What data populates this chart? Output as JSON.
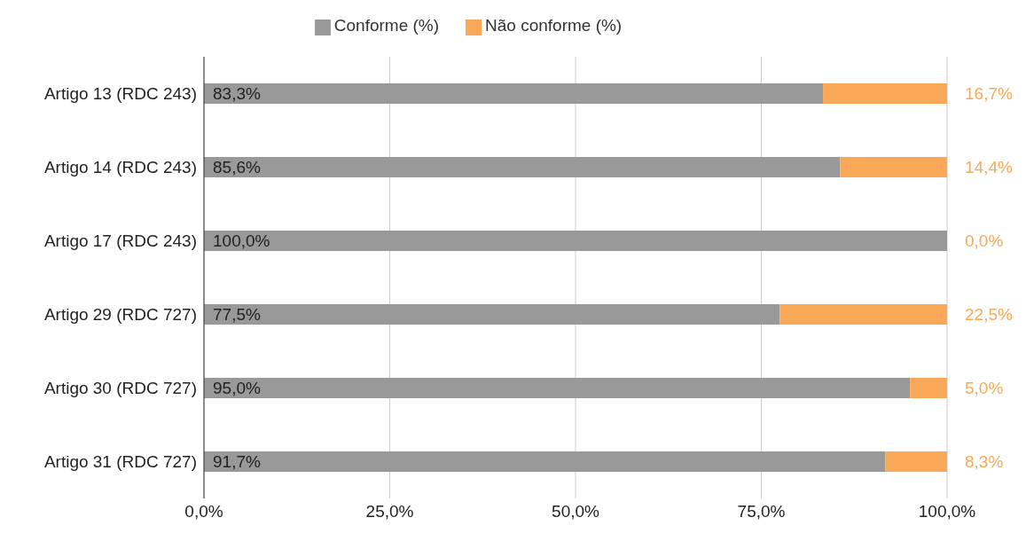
{
  "chart_data": {
    "type": "bar",
    "orientation": "horizontal",
    "stacked": true,
    "categories": [
      "Artigo 13 (RDC 243)",
      "Artigo 14 (RDC 243)",
      "Artigo 17 (RDC 243)",
      "Artigo 29 (RDC 727)",
      "Artigo 30 (RDC 727)",
      "Artigo 31 (RDC 727)"
    ],
    "series": [
      {
        "name": "Conforme (%)",
        "color": "#999999",
        "values": [
          83.3,
          85.6,
          100.0,
          77.5,
          95.0,
          91.7
        ],
        "value_labels": [
          "83,3%",
          "85,6%",
          "100,0%",
          "77,5%",
          "95,0%",
          "91,7%"
        ]
      },
      {
        "name": "Não conforme (%)",
        "color": "#f9a857",
        "values": [
          16.7,
          14.4,
          0.0,
          22.5,
          5.0,
          8.3
        ],
        "value_labels": [
          "16,7%",
          "14,4%",
          "0,0%",
          "22,5%",
          "5,0%",
          "8,3%"
        ]
      }
    ],
    "xlim": [
      0,
      100
    ],
    "xticks": [
      {
        "value": 0,
        "label": "0,0%"
      },
      {
        "value": 25,
        "label": "25,0%"
      },
      {
        "value": 50,
        "label": "50,0%"
      },
      {
        "value": 75,
        "label": "75,0%"
      },
      {
        "value": 100,
        "label": "100,0%"
      }
    ],
    "grid": "x",
    "legend": "top"
  }
}
